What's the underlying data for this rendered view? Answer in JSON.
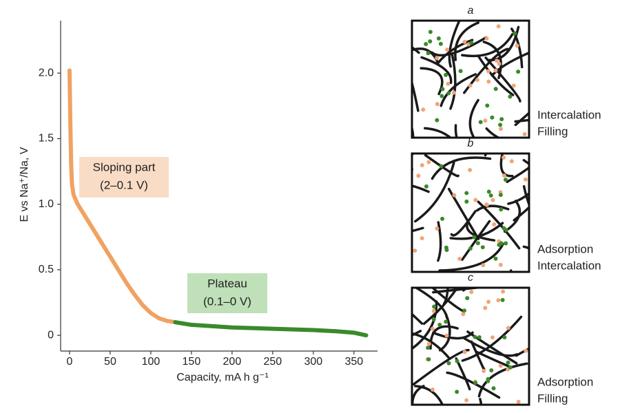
{
  "chart_data": {
    "type": "line",
    "xlabel": "Capacity, mA h g⁻¹",
    "ylabel": "E vs Na⁺/Na, V",
    "xlim": [
      -11,
      379
    ],
    "ylim": [
      -0.12,
      2.4
    ],
    "xticks": [
      0,
      50,
      100,
      150,
      200,
      250,
      300,
      350
    ],
    "yticks": [
      0,
      0.5,
      {
        "value": 1,
        "label": "1.0"
      },
      1.5,
      {
        "value": 2,
        "label": "2.0"
      }
    ],
    "series": [
      {
        "color": "#f0a262",
        "x": [
          0,
          1,
          2,
          3,
          5,
          10,
          20,
          30,
          40,
          50,
          60,
          70,
          80,
          90,
          100,
          110,
          120,
          130
        ],
        "values": [
          2.02,
          1.6,
          1.3,
          1.15,
          1.07,
          1.0,
          0.9,
          0.8,
          0.7,
          0.6,
          0.5,
          0.4,
          0.31,
          0.23,
          0.17,
          0.13,
          0.11,
          0.1
        ]
      },
      {
        "color": "#3a8a2a",
        "x": [
          130,
          150,
          200,
          250,
          300,
          330,
          350,
          365
        ],
        "values": [
          0.1,
          0.08,
          0.06,
          0.05,
          0.04,
          0.03,
          0.02,
          0.0
        ]
      }
    ],
    "annotations": [
      {
        "lines": [
          "Sloping part",
          "(2–0.1 V)"
        ],
        "color": "#f8dcc6"
      },
      {
        "lines": [
          "Plateau",
          "(0.1–0 V)"
        ],
        "color": "#bfe0b8"
      }
    ]
  },
  "panels": [
    {
      "title": "a",
      "labels": [
        "Intercalation",
        "Filling"
      ]
    },
    {
      "title": "b",
      "labels": [
        "Adsorption",
        "Intercalation"
      ]
    },
    {
      "title": "c",
      "labels": [
        "Adsorption",
        "Filling"
      ]
    }
  ]
}
